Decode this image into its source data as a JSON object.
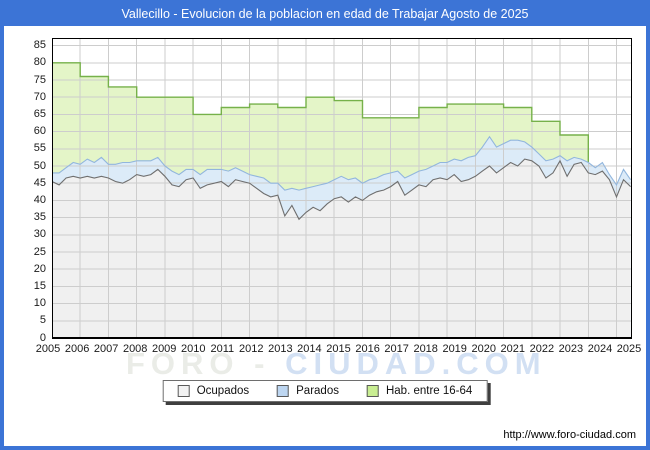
{
  "header": {
    "title": "Vallecillo - Evolucion de la poblacion en edad de Trabajar Agosto de 2025"
  },
  "watermark": {
    "left": "FORO - ",
    "right": "CIUDAD.COM"
  },
  "footer": {
    "url": "http://www.foro-ciudad.com"
  },
  "legend": [
    {
      "label": "Ocupados",
      "swatch": "#f2f2f2"
    },
    {
      "label": "Parados",
      "swatch": "#bdd6f1"
    },
    {
      "label": "Hab. entre 16-64",
      "swatch": "#c9ee92"
    }
  ],
  "colors": {
    "brand_blue": "#3c74d6",
    "gridline": "#cdcdcd",
    "frame": "#000000",
    "ocupados_fill": "#f0f0f0",
    "ocupados_line": "#6f6f6f",
    "parados_fill": "#dcebf8",
    "parados_line": "#92b6dd",
    "hab_fill": "#e4f5c8",
    "hab_line": "#76b14a"
  },
  "chart_data": {
    "type": "area",
    "title": "Vallecillo - Evolucion de la poblacion en edad de Trabajar Agosto de 2025",
    "xlabel": "",
    "ylabel": "",
    "legend_position": "bottom-center",
    "grid": true,
    "xlim": [
      2005.0,
      2025.55
    ],
    "ylim": [
      0,
      87.2
    ],
    "yticks": [
      0,
      5,
      10,
      15,
      20,
      25,
      30,
      35,
      40,
      45,
      50,
      55,
      60,
      65,
      70,
      75,
      80,
      85
    ],
    "xlabels": [
      "2005",
      "2006",
      "2007",
      "2008",
      "2009",
      "2010",
      "2011",
      "2012",
      "2013",
      "2014",
      "2015",
      "2016",
      "2017",
      "2018",
      "2019",
      "2020",
      "2021",
      "2022",
      "2023",
      "2024",
      "2025"
    ],
    "x_start": 2005.0,
    "x_step": 0.25,
    "series": [
      {
        "name": "Ocupados",
        "values": [
          45.5,
          44.5,
          46.5,
          47,
          46.5,
          47,
          46.5,
          47,
          46.5,
          45.5,
          45,
          46,
          47.5,
          47,
          47.5,
          49,
          47,
          44.5,
          44,
          46,
          46.5,
          43.5,
          44.5,
          45,
          45.5,
          44,
          46,
          45.5,
          45,
          43.5,
          42,
          41,
          41.5,
          35.5,
          38.5,
          34.5,
          36.5,
          38,
          37,
          39,
          40.5,
          41,
          39.5,
          41,
          40,
          41.5,
          42.5,
          43,
          44,
          45.5,
          41.5,
          43,
          44.5,
          44,
          46,
          46.5,
          46,
          47.5,
          45.5,
          46,
          47,
          48.5,
          50,
          48,
          49.5,
          51,
          50,
          52,
          51.5,
          50,
          46.5,
          48,
          51.5,
          47,
          50.5,
          51,
          48,
          47.5,
          48.5,
          46,
          41,
          46,
          44
        ]
      },
      {
        "name": "Parados",
        "note": "monthly unemployed count, plotted stacked on top of Ocupados",
        "values": [
          2.5,
          3.5,
          3,
          4,
          4,
          5,
          4.5,
          5.5,
          4,
          5,
          6,
          5,
          4,
          4.5,
          4,
          3.5,
          3,
          4,
          3.5,
          3,
          2.5,
          4,
          4.5,
          4,
          3.5,
          4.5,
          3.5,
          3,
          2.5,
          3.5,
          4.5,
          4,
          3.5,
          7.5,
          5,
          8.5,
          7,
          6,
          7.5,
          6,
          5.5,
          6,
          6.5,
          5.5,
          5,
          4.5,
          4,
          4.5,
          4,
          3,
          5,
          4.5,
          4,
          5,
          4,
          4.5,
          5,
          4.5,
          6,
          6.5,
          6,
          7,
          8.5,
          7.5,
          7,
          6.5,
          7.5,
          5,
          4,
          3.5,
          5,
          4,
          1.5,
          4.5,
          2,
          1,
          3,
          2,
          2.5,
          1.5,
          3.5,
          3,
          2
        ]
      },
      {
        "name": "Hab. entre 16-64",
        "step": true,
        "years": [
          2005,
          2006,
          2007,
          2008,
          2009,
          2010,
          2011,
          2012,
          2013,
          2014,
          2015,
          2016,
          2017,
          2018,
          2019,
          2020,
          2021,
          2022,
          2023
        ],
        "values": [
          80,
          76,
          73,
          70,
          70,
          65,
          67,
          68,
          67,
          70,
          69,
          64,
          64,
          67,
          68,
          68,
          67,
          63,
          59
        ],
        "series_end": 2024.0
      }
    ]
  }
}
